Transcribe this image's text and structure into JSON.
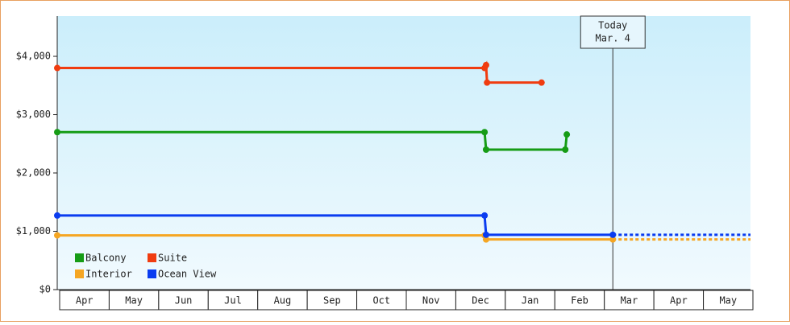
{
  "chart_data": {
    "type": "line",
    "categories": [
      "Apr",
      "May",
      "Jun",
      "Jul",
      "Aug",
      "Sep",
      "Oct",
      "Nov",
      "Dec",
      "Jan",
      "Feb",
      "Mar",
      "Apr",
      "May"
    ],
    "xlim": [
      0,
      14
    ],
    "ylim": [
      0,
      4690
    ],
    "yticks": [
      {
        "value": 0,
        "label": "$0"
      },
      {
        "value": 1000,
        "label": "$1,000"
      },
      {
        "value": 2000,
        "label": "$2,000"
      },
      {
        "value": 3000,
        "label": "$3,000"
      },
      {
        "value": 4000,
        "label": "$4,000"
      }
    ],
    "series": [
      {
        "name": "Balcony",
        "color": "#169c16",
        "x": [
          0,
          8.63,
          8.66,
          10.26,
          10.29
        ],
        "values": [
          2700,
          2700,
          2400,
          2400,
          2660
        ]
      },
      {
        "name": "Suite",
        "color": "#f03c10",
        "x": [
          0,
          8.63,
          8.66,
          8.68,
          9.78
        ],
        "values": [
          3800,
          3800,
          3850,
          3550,
          3550
        ]
      },
      {
        "name": "Interior",
        "color": "#f5a623",
        "x": [
          0,
          8.63,
          8.66,
          11.22
        ],
        "values": [
          930,
          930,
          860,
          860
        ],
        "projected": {
          "x": [
            11.22,
            14
          ],
          "values": [
            860,
            860
          ]
        }
      },
      {
        "name": "Ocean View",
        "color": "#0a3cf0",
        "x": [
          0,
          8.63,
          8.66,
          11.22
        ],
        "values": [
          1270,
          1270,
          940,
          940
        ],
        "projected": {
          "x": [
            11.22,
            14
          ],
          "values": [
            940,
            940
          ]
        }
      }
    ],
    "today": {
      "x": 11.22,
      "label": [
        "Today",
        "Mar. 4"
      ]
    }
  }
}
